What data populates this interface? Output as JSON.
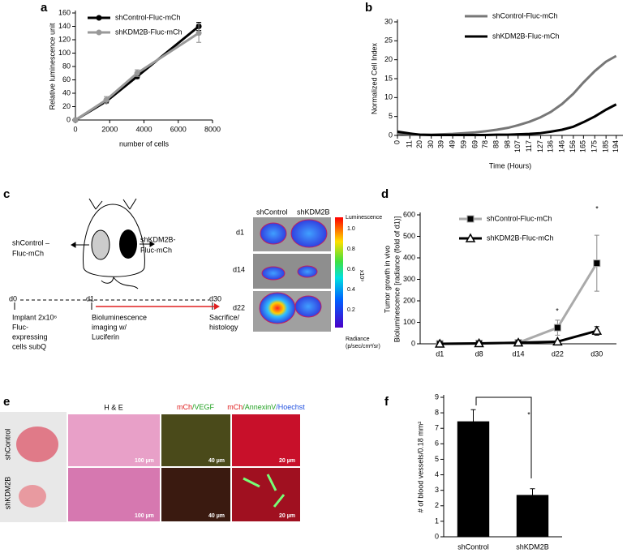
{
  "panel_labels": [
    "a",
    "b",
    "c",
    "d",
    "e",
    "f"
  ],
  "chart_data": [
    {
      "type": "line",
      "xlabel": "number of cells",
      "ylabel": "Relative luminescence unit",
      "x": [
        0,
        1800,
        3600,
        7200
      ],
      "xlim": [
        0,
        8000
      ],
      "xticks": [
        0,
        2000,
        4000,
        6000,
        8000
      ],
      "ylim": [
        0,
        160
      ],
      "yticks": [
        0,
        20,
        40,
        60,
        80,
        100,
        120,
        140,
        160
      ],
      "series": [
        {
          "name": "shControl-Fluc-mCh",
          "color": "#000000",
          "values": [
            0,
            28,
            65,
            140
          ],
          "errors": [
            0,
            3,
            3,
            6
          ]
        },
        {
          "name": "shKDM2B-Fluc-mCh",
          "color": "#999999",
          "values": [
            0,
            30,
            70,
            130
          ],
          "errors": [
            0,
            5,
            5,
            14
          ]
        }
      ]
    },
    {
      "type": "line",
      "xlabel": "Time (Hours)",
      "ylabel": "Normalized Cell Index",
      "x": [
        0,
        11,
        20,
        30,
        39,
        49,
        59,
        69,
        78,
        88,
        98,
        107,
        117,
        127,
        136,
        146,
        156,
        165,
        175,
        185,
        194
      ],
      "xlim": [
        0,
        200
      ],
      "xticks": [
        0,
        11,
        20,
        30,
        39,
        49,
        59,
        69,
        78,
        88,
        98,
        107,
        117,
        127,
        136,
        146,
        156,
        165,
        175,
        185,
        194
      ],
      "ylim": [
        0,
        30
      ],
      "yticks": [
        0,
        5,
        10,
        15,
        20,
        25,
        30
      ],
      "series": [
        {
          "name": "shControl-Fluc-mCh",
          "color": "#777777",
          "values": [
            0.5,
            0.3,
            0.2,
            0.2,
            0.3,
            0.4,
            0.6,
            0.8,
            1.1,
            1.5,
            2,
            2.7,
            3.6,
            4.8,
            6.2,
            8.3,
            11,
            14,
            17,
            19.5,
            21
          ]
        },
        {
          "name": "shKDM2B-Fluc-mCh",
          "color": "#000000",
          "values": [
            1,
            0.5,
            0.2,
            0.1,
            0.1,
            0.1,
            0.1,
            0.1,
            0.1,
            0.2,
            0.2,
            0.3,
            0.4,
            0.6,
            1,
            1.5,
            2.3,
            3.5,
            5,
            6.8,
            8.2
          ]
        }
      ]
    },
    {
      "type": "line",
      "ylabel": [
        "Tumor growth in vivo",
        "Bioluminescence [radiance (fold of d1)]"
      ],
      "categories": [
        "d1",
        "d8",
        "d14",
        "d22",
        "d30"
      ],
      "ylim": [
        0,
        600
      ],
      "yticks": [
        0,
        100,
        200,
        300,
        400,
        500,
        600
      ],
      "series": [
        {
          "name": "shControl-Fluc-mCh",
          "color": "#aaaaaa",
          "marker": "square",
          "values": [
            0,
            2,
            5,
            75,
            375
          ],
          "errors": [
            0,
            0,
            0,
            35,
            130
          ]
        },
        {
          "name": "shKDM2B-Fluc-mCh",
          "color": "#000000",
          "marker": "triangle",
          "values": [
            0,
            2,
            5,
            10,
            60
          ],
          "errors": [
            0,
            0,
            0,
            5,
            20
          ]
        }
      ],
      "annotations": [
        "*",
        "*"
      ]
    },
    {
      "type": "bar",
      "ylabel": "# of blood vessels/0.18 mm²",
      "categories": [
        "shControl",
        "shKDM2B"
      ],
      "values": [
        7.45,
        2.7
      ],
      "errors": [
        0.75,
        0.4
      ],
      "color": "#000000",
      "ylim": [
        0,
        9
      ],
      "yticks": [
        0,
        1,
        2,
        3,
        4,
        5,
        6,
        7,
        8,
        9
      ],
      "annotations": [
        "*"
      ]
    }
  ],
  "diagram_c": {
    "left_label": [
      "shControl –",
      "Fluc-mCh"
    ],
    "right_label": [
      "shKDM2B-",
      "Fluc-mCh"
    ],
    "timeline": [
      "d0",
      "d1",
      "d30"
    ],
    "steps": [
      [
        "Implant 2x10⁶",
        "Fluc-",
        "expressing",
        "cells subQ"
      ],
      [
        "Bioluminescence",
        "imaging w/",
        "Luciferin"
      ],
      [
        "Sacrifice/",
        "histology"
      ]
    ],
    "image_headers": [
      "shControl",
      "shKDM2B"
    ],
    "image_rows": [
      "d1",
      "d14",
      "d22"
    ],
    "colorbar_title": "Luminescence",
    "colorbar_ticks": [
      "1.0",
      "0.8",
      "0.6",
      "0.4",
      "0.2"
    ],
    "colorbar_unit": "x10⁹",
    "colorbar_footer": [
      "Radiance",
      "(p/sec/cm²/sr)"
    ]
  },
  "images_e": {
    "rows": [
      "shControl",
      "shKDM2B"
    ],
    "he_header": "H & E",
    "vegf_header": [
      "mCh",
      "/VEGF"
    ],
    "annexin_header": [
      "mCh",
      "/AnnexinV",
      "/Hoechst"
    ],
    "scale_bars": [
      "100 µm",
      "40 µm",
      "20 µm"
    ]
  }
}
